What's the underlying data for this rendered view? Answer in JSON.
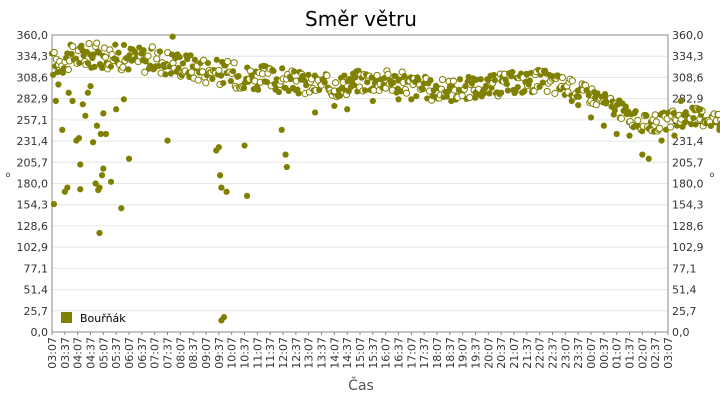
{
  "chart_data": {
    "type": "scatter",
    "title": "Směr větru",
    "xlabel": "Čas",
    "ylabel": "°",
    "ylim": [
      0,
      360
    ],
    "yticks": [
      "0,0",
      "25,7",
      "51,4",
      "77,1",
      "102,9",
      "128,6",
      "154,3",
      "180,0",
      "205,7",
      "231,4",
      "257,1",
      "282,9",
      "308,6",
      "334,3",
      "360,0"
    ],
    "xticks": [
      "03:07",
      "03:37",
      "04:07",
      "04:37",
      "05:07",
      "05:37",
      "06:07",
      "06:37",
      "07:07",
      "07:37",
      "08:07",
      "08:37",
      "09:07",
      "09:37",
      "10:07",
      "10:37",
      "11:07",
      "11:37",
      "12:07",
      "12:37",
      "13:07",
      "13:37",
      "14:07",
      "14:37",
      "15:07",
      "15:37",
      "16:07",
      "16:37",
      "17:07",
      "17:37",
      "18:07",
      "18:37",
      "19:07",
      "19:37",
      "20:07",
      "20:37",
      "21:07",
      "21:37",
      "22:07",
      "22:37",
      "23:07",
      "23:37",
      "00:07",
      "00:37",
      "01:07",
      "01:37",
      "02:07",
      "02:37",
      "03:07"
    ],
    "grid": true,
    "legend": "bottom-left",
    "series": [
      {
        "name": "Bouřňák",
        "color": "#808000",
        "profile": [
          [
            0,
            325
          ],
          [
            2,
            335
          ],
          [
            4,
            335
          ],
          [
            6,
            332
          ],
          [
            8,
            330
          ],
          [
            10,
            325
          ],
          [
            12,
            318
          ],
          [
            14,
            312
          ],
          [
            16,
            308
          ],
          [
            18,
            305
          ],
          [
            20,
            300
          ],
          [
            22,
            298
          ],
          [
            24,
            305
          ],
          [
            26,
            305
          ],
          [
            28,
            300
          ],
          [
            30,
            292
          ],
          [
            32,
            295
          ],
          [
            34,
            298
          ],
          [
            36,
            302
          ],
          [
            38,
            305
          ],
          [
            40,
            298
          ],
          [
            42,
            288
          ],
          [
            44,
            272
          ],
          [
            46,
            252
          ],
          [
            48,
            256
          ],
          [
            50,
            262
          ],
          [
            52,
            258
          ],
          [
            54,
            258
          ],
          [
            56,
            252
          ],
          [
            58,
            242
          ],
          [
            60,
            236
          ],
          [
            62,
            250
          ],
          [
            64,
            266
          ],
          [
            66,
            276
          ],
          [
            68,
            278
          ],
          [
            70,
            280
          ],
          [
            72,
            280
          ],
          [
            74,
            280
          ],
          [
            76,
            280
          ],
          [
            77,
            282
          ]
        ],
        "outliers": [
          [
            0.15,
            155
          ],
          [
            0.3,
            280
          ],
          [
            0.5,
            300
          ],
          [
            0.8,
            245
          ],
          [
            1.0,
            170
          ],
          [
            1.2,
            175
          ],
          [
            1.3,
            290
          ],
          [
            1.6,
            280
          ],
          [
            1.9,
            232
          ],
          [
            2.1,
            235
          ],
          [
            2.2,
            173
          ],
          [
            2.2,
            203
          ],
          [
            2.4,
            276
          ],
          [
            2.6,
            262
          ],
          [
            2.8,
            290
          ],
          [
            3.0,
            298
          ],
          [
            3.2,
            230
          ],
          [
            3.4,
            180
          ],
          [
            3.5,
            250
          ],
          [
            3.6,
            172
          ],
          [
            3.7,
            175
          ],
          [
            3.7,
            120
          ],
          [
            3.8,
            240
          ],
          [
            3.9,
            190
          ],
          [
            4.0,
            198
          ],
          [
            4.0,
            265
          ],
          [
            4.2,
            240
          ],
          [
            4.6,
            182
          ],
          [
            5.0,
            270
          ],
          [
            5.4,
            150
          ],
          [
            5.6,
            282
          ],
          [
            6.0,
            210
          ],
          [
            9.0,
            232
          ],
          [
            9.4,
            358
          ],
          [
            12.8,
            220
          ],
          [
            13.0,
            224
          ],
          [
            13.1,
            190
          ],
          [
            13.2,
            175
          ],
          [
            13.2,
            14
          ],
          [
            13.4,
            18
          ],
          [
            13.6,
            170
          ],
          [
            15.0,
            226
          ],
          [
            15.2,
            165
          ],
          [
            18.2,
            215
          ],
          [
            18.3,
            200
          ],
          [
            17.9,
            245
          ],
          [
            20.5,
            266
          ],
          [
            22.0,
            274
          ],
          [
            23.0,
            270
          ],
          [
            25.0,
            280
          ],
          [
            27.0,
            282
          ],
          [
            28.0,
            282
          ],
          [
            31.0,
            296
          ],
          [
            33.0,
            290
          ],
          [
            35.0,
            290
          ],
          [
            37.0,
            312
          ],
          [
            39.0,
            310
          ],
          [
            40.5,
            280
          ],
          [
            41.0,
            275
          ],
          [
            42.0,
            260
          ],
          [
            43.0,
            250
          ],
          [
            44.0,
            240
          ],
          [
            45.0,
            238
          ],
          [
            46.0,
            215
          ],
          [
            46.5,
            210
          ],
          [
            47.5,
            232
          ],
          [
            48.5,
            238
          ],
          [
            49.0,
            280
          ],
          [
            50.5,
            270
          ],
          [
            52.0,
            245
          ],
          [
            53.5,
            230
          ],
          [
            55.0,
            238
          ],
          [
            56.0,
            225
          ],
          [
            57.0,
            220
          ],
          [
            58.0,
            218
          ],
          [
            59.0,
            230
          ],
          [
            60.5,
            240
          ],
          [
            61.5,
            262
          ],
          [
            63.0,
            262
          ],
          [
            64.0,
            260
          ],
          [
            65.5,
            260
          ],
          [
            66.5,
            262
          ],
          [
            67.0,
            290
          ],
          [
            69.0,
            292
          ]
        ]
      }
    ]
  }
}
